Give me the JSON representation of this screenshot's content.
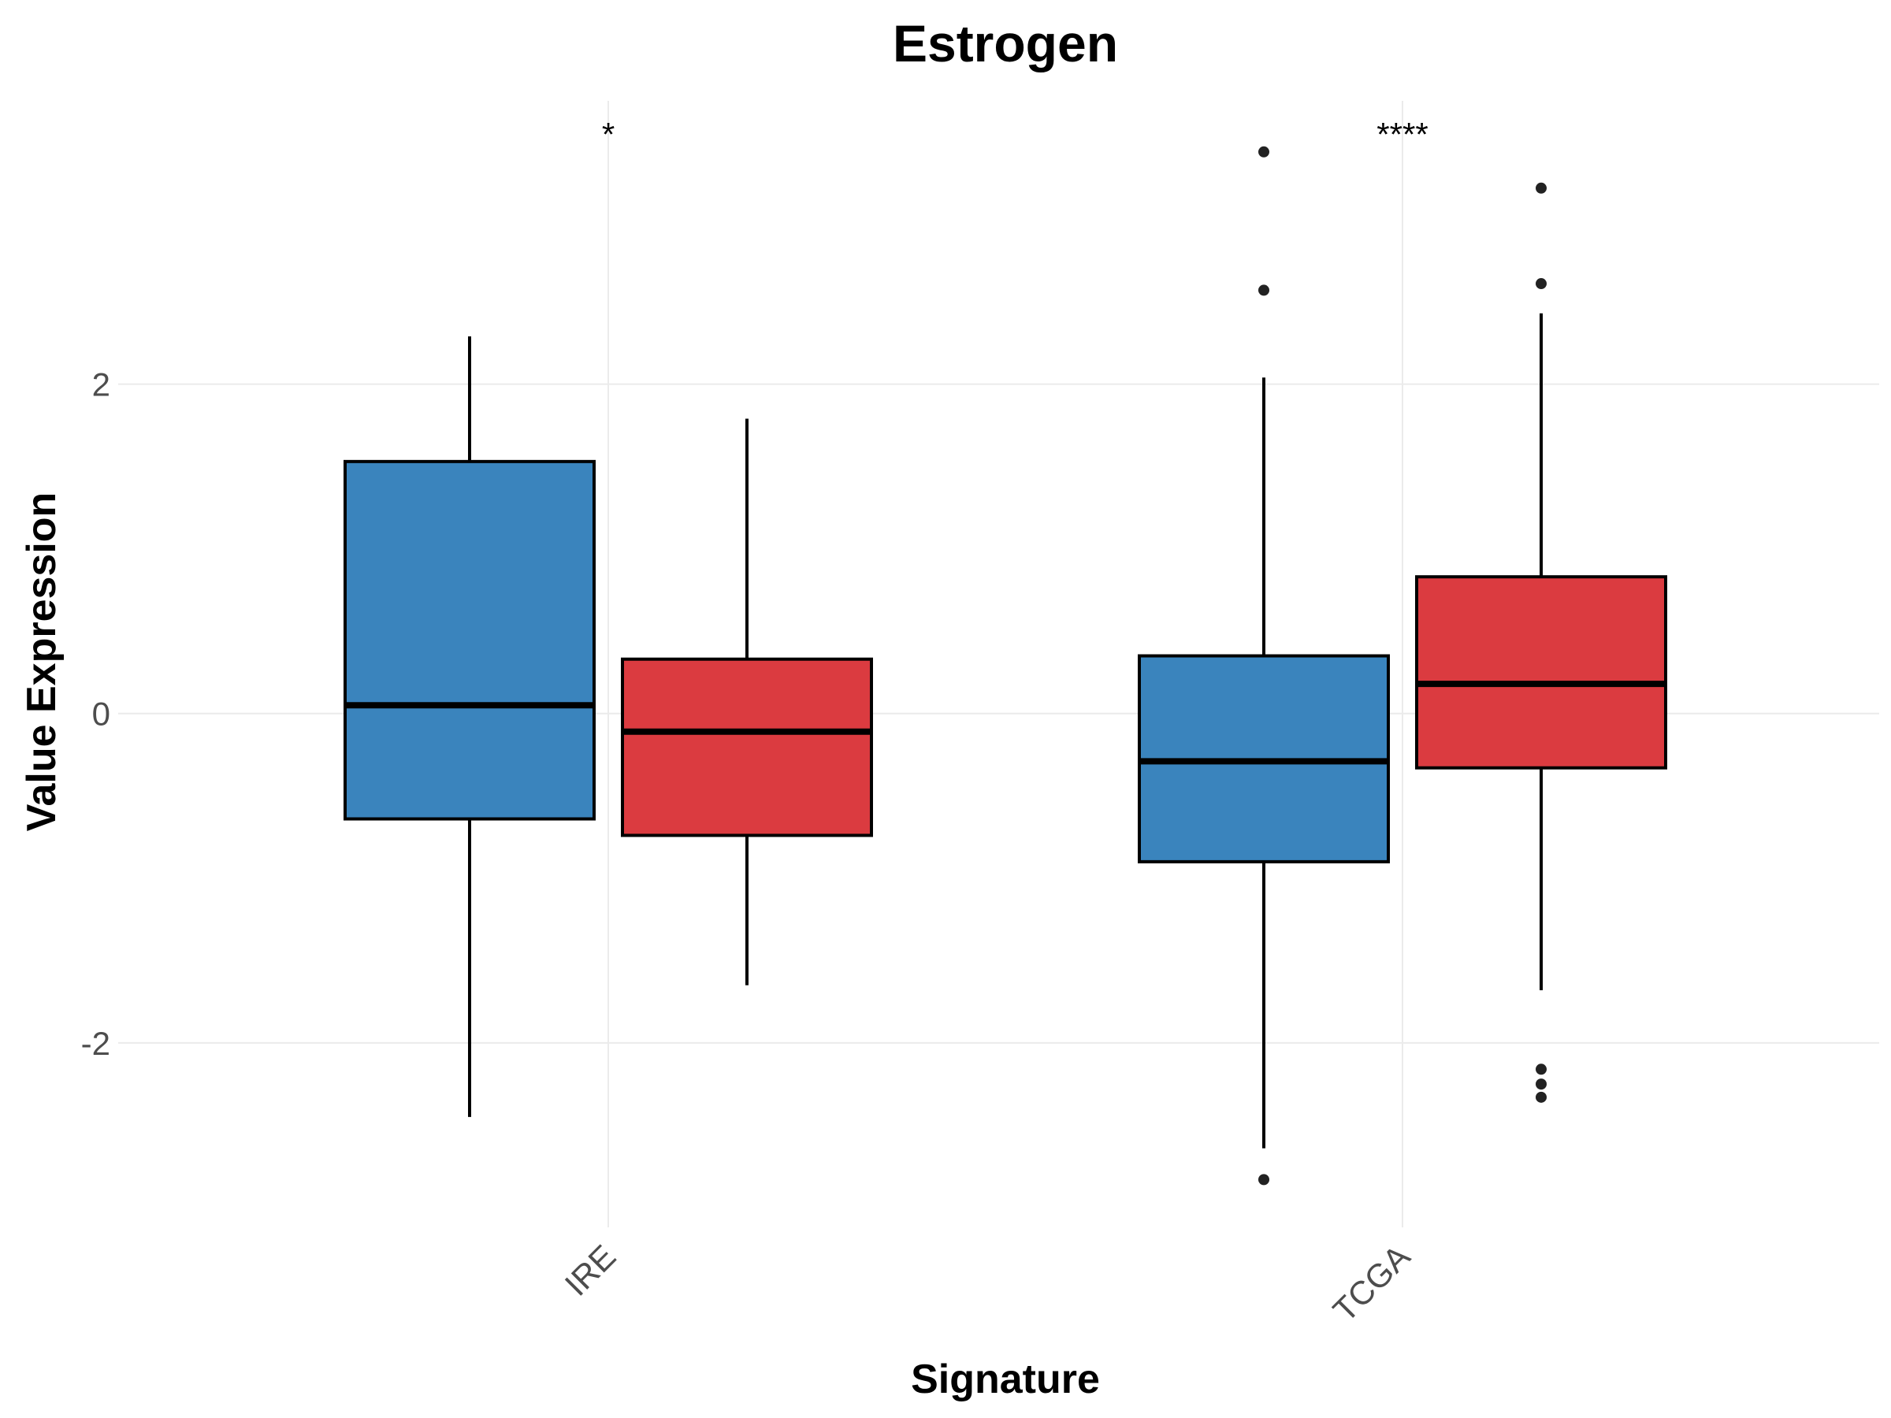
{
  "chart_data": {
    "type": "boxplot",
    "title": "Estrogen",
    "xlabel": "Signature",
    "ylabel": "Value Expression",
    "categories": [
      "IRE",
      "TCGA"
    ],
    "ylim": [
      -3.12,
      3.72
    ],
    "yticks": [
      -2,
      0,
      2
    ],
    "ytick_labels": [
      "-2",
      "0",
      "2"
    ],
    "grid": true,
    "legend": "none",
    "series": [
      {
        "color": "#3a84bd",
        "boxes": [
          {
            "category": "IRE",
            "whisker_low": -2.45,
            "q1": -0.64,
            "median": 0.05,
            "q3": 1.53,
            "whisker_high": 2.29,
            "outliers": []
          },
          {
            "category": "TCGA",
            "whisker_low": -2.64,
            "q1": -0.9,
            "median": -0.29,
            "q3": 0.35,
            "whisker_high": 2.04,
            "outliers": [
              3.41,
              2.57,
              -2.83
            ]
          }
        ]
      },
      {
        "color": "#db3b40",
        "boxes": [
          {
            "category": "IRE",
            "whisker_low": -1.65,
            "q1": -0.74,
            "median": -0.11,
            "q3": 0.33,
            "whisker_high": 1.79,
            "outliers": []
          },
          {
            "category": "TCGA",
            "whisker_low": -1.68,
            "q1": -0.33,
            "median": 0.18,
            "q3": 0.83,
            "whisker_high": 2.43,
            "outliers": [
              3.19,
              2.61,
              -2.16,
              -2.25,
              -2.33
            ]
          }
        ]
      }
    ],
    "significance": [
      {
        "category": "IRE",
        "label": "*"
      },
      {
        "category": "TCGA",
        "label": "****"
      }
    ]
  }
}
